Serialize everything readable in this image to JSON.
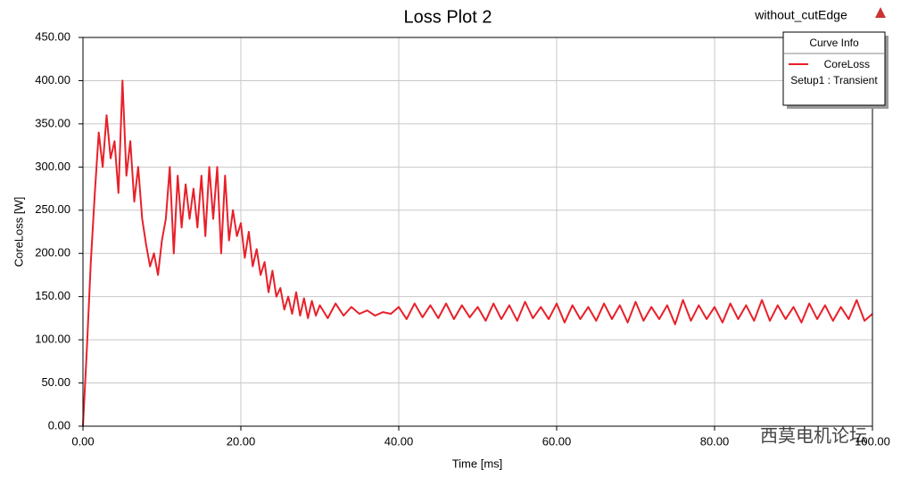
{
  "chart_data": {
    "type": "line",
    "title": "Loss Plot 2",
    "subtitle": "without_cutEdge",
    "x_label": "Time [ms]",
    "y_label": "CoreLoss [W]",
    "legend_title": "Curve Info",
    "legend_note": "Setup1 : Transient",
    "legend_position": "upper right",
    "watermark": "西莫电机论坛",
    "grid": true,
    "xlim": [
      0,
      100
    ],
    "ylim": [
      0,
      450
    ],
    "xticks": [
      {
        "value": 0,
        "label": "0.00"
      },
      {
        "value": 20,
        "label": "20.00"
      },
      {
        "value": 40,
        "label": "40.00"
      },
      {
        "value": 60,
        "label": "60.00"
      },
      {
        "value": 80,
        "label": "80.00"
      },
      {
        "value": 100,
        "label": "100.00"
      }
    ],
    "yticks": [
      {
        "value": 0,
        "label": "0.00"
      },
      {
        "value": 50,
        "label": "50.00"
      },
      {
        "value": 100,
        "label": "100.00"
      },
      {
        "value": 150,
        "label": "150.00"
      },
      {
        "value": 200,
        "label": "200.00"
      },
      {
        "value": 250,
        "label": "250.00"
      },
      {
        "value": 300,
        "label": "300.00"
      },
      {
        "value": 350,
        "label": "350.00"
      },
      {
        "value": 400,
        "label": "400.00"
      },
      {
        "value": 450,
        "label": "450.00"
      }
    ],
    "x": [
      0,
      0.5,
      1,
      1.5,
      2,
      2.5,
      3,
      3.5,
      4,
      4.5,
      5,
      5.5,
      6,
      6.5,
      7,
      7.5,
      8,
      8.5,
      9,
      9.5,
      10,
      10.5,
      11,
      11.5,
      12,
      12.5,
      13,
      13.5,
      14,
      14.5,
      15,
      15.5,
      16,
      16.5,
      17,
      17.5,
      18,
      18.5,
      19,
      19.5,
      20,
      20.5,
      21,
      21.5,
      22,
      22.5,
      23,
      23.5,
      24,
      24.5,
      25,
      25.5,
      26,
      26.5,
      27,
      27.5,
      28,
      28.5,
      29,
      29.5,
      30,
      31,
      32,
      33,
      34,
      35,
      36,
      37,
      38,
      39,
      40,
      41,
      42,
      43,
      44,
      45,
      46,
      47,
      48,
      49,
      50,
      51,
      52,
      53,
      54,
      55,
      56,
      57,
      58,
      59,
      60,
      61,
      62,
      63,
      64,
      65,
      66,
      67,
      68,
      69,
      70,
      71,
      72,
      73,
      74,
      75,
      76,
      77,
      78,
      79,
      80,
      81,
      82,
      83,
      84,
      85,
      86,
      87,
      88,
      89,
      90,
      91,
      92,
      93,
      94,
      95,
      96,
      97,
      98,
      99,
      100
    ],
    "series": [
      {
        "name": "CoreLoss",
        "color": "#e8202a",
        "values": [
          0,
          90,
          190,
          270,
          340,
          300,
          360,
          310,
          330,
          270,
          400,
          290,
          330,
          260,
          300,
          240,
          210,
          185,
          200,
          175,
          215,
          240,
          300,
          200,
          290,
          230,
          280,
          240,
          275,
          230,
          290,
          220,
          300,
          240,
          300,
          200,
          290,
          215,
          250,
          220,
          235,
          195,
          225,
          185,
          205,
          175,
          190,
          155,
          180,
          150,
          160,
          135,
          150,
          130,
          155,
          128,
          148,
          125,
          145,
          128,
          140,
          125,
          142,
          128,
          138,
          130,
          134,
          128,
          132,
          130,
          138,
          124,
          142,
          126,
          140,
          125,
          142,
          124,
          140,
          126,
          138,
          122,
          142,
          124,
          140,
          122,
          144,
          125,
          138,
          124,
          142,
          120,
          140,
          124,
          138,
          122,
          142,
          124,
          140,
          120,
          144,
          122,
          138,
          124,
          140,
          118,
          146,
          122,
          140,
          124,
          138,
          120,
          142,
          124,
          140,
          122,
          146,
          122,
          140,
          124,
          138,
          120,
          142,
          124,
          140,
          122,
          138,
          124,
          146,
          122,
          130
        ]
      }
    ]
  }
}
